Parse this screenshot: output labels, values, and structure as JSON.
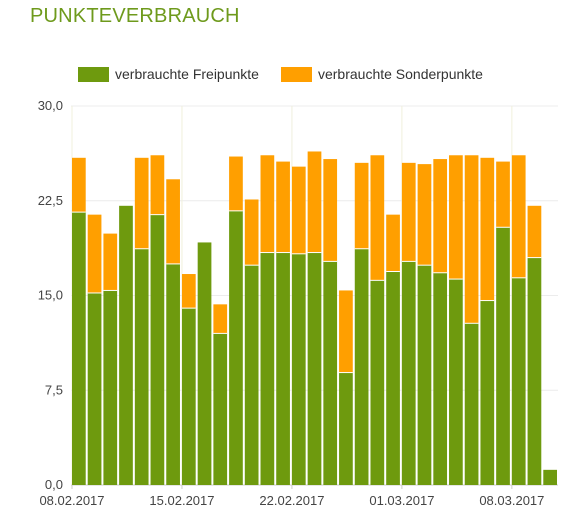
{
  "title": "PUNKTEVERBRAUCH",
  "colors": {
    "free": "#6e9a0e",
    "special": "#ff9f00"
  },
  "chart_data": {
    "type": "bar",
    "stacked": true,
    "title": "PUNKTEVERBRAUCH",
    "xlabel": "",
    "ylabel": "",
    "ylim": [
      0,
      30
    ],
    "yticks": [
      "0,0",
      "7,5",
      "15,0",
      "22,5",
      "30,0"
    ],
    "xtick_labels": [
      {
        "index": 0,
        "label": "08.02.2017"
      },
      {
        "index": 7,
        "label": "15.02.2017"
      },
      {
        "index": 14,
        "label": "22.02.2017"
      },
      {
        "index": 21,
        "label": "01.03.2017"
      },
      {
        "index": 28,
        "label": "08.03.2017"
      }
    ],
    "legend": "top-left",
    "grid": true,
    "series": [
      {
        "name": "verbrauchte Freipunkte",
        "color": "#6e9a0e",
        "values": [
          21.6,
          15.2,
          15.4,
          22.1,
          18.7,
          21.4,
          17.5,
          14.0,
          19.2,
          12.0,
          21.7,
          17.4,
          18.4,
          18.4,
          18.3,
          18.4,
          17.7,
          8.9,
          18.7,
          16.2,
          16.9,
          17.7,
          17.4,
          16.8,
          16.3,
          12.8,
          14.6,
          20.4,
          16.4,
          18.0,
          1.2
        ]
      },
      {
        "name": "verbrauchte Sonderpunkte",
        "color": "#ff9f00",
        "values": [
          4.3,
          6.2,
          4.5,
          0.0,
          7.2,
          4.7,
          6.7,
          2.7,
          0.0,
          2.3,
          4.3,
          5.2,
          7.7,
          7.2,
          6.9,
          8.0,
          8.1,
          6.5,
          6.8,
          9.9,
          4.5,
          7.8,
          8.0,
          9.0,
          9.8,
          13.3,
          11.3,
          5.2,
          9.7,
          4.1,
          0.0
        ]
      }
    ]
  }
}
